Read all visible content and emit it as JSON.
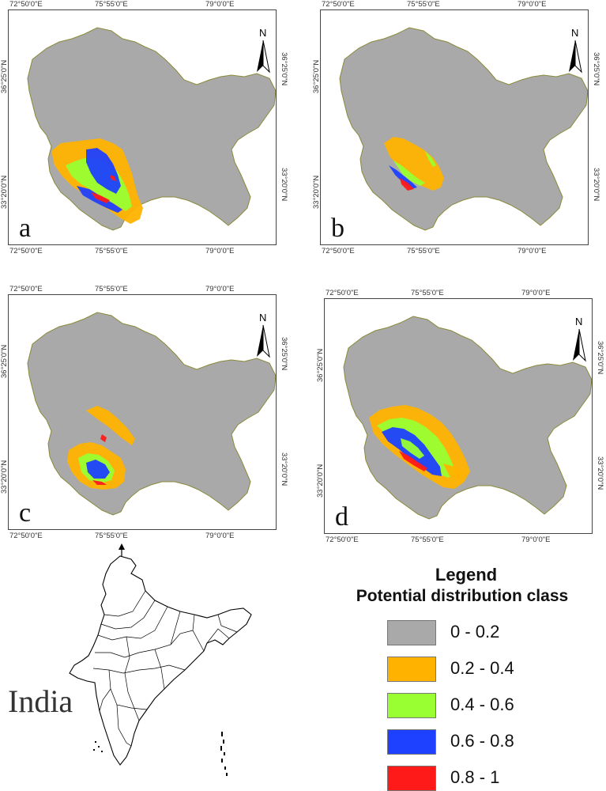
{
  "colors": {
    "background": "#a9a9a9",
    "class_0_0_2": "#a9a9a9",
    "class_0_2_0_4": "#ffb300",
    "class_0_4_0_6": "#99ff33",
    "class_0_6_0_8": "#1e40ff",
    "class_0_8_1": "#ff1a1a",
    "outline": "#8a8a3a"
  },
  "panels": [
    {
      "id": "a",
      "label": "a",
      "top_ticks": [
        "72°50'0\"E",
        "75°55'0\"E",
        "79°0'0\"E"
      ],
      "bottom_ticks": [
        "72°50'0\"E",
        "75°55'0\"E",
        "79°0'0\"E"
      ],
      "left_ticks": [
        "36°25'0\"N",
        "33°20'0\"N"
      ],
      "right_ticks": [
        "36°25'0\"N",
        "33°20'0\"N"
      ],
      "north": "N"
    },
    {
      "id": "b",
      "label": "b",
      "top_ticks": [
        "72°50'0\"E",
        "75°55'0\"E",
        "79°0'0\"E"
      ],
      "bottom_ticks": [
        "72°50'0\"E",
        "75°55'0\"E",
        "79°0'0\"E"
      ],
      "left_ticks": [
        "36°25'0\"N",
        "33°20'0\"N"
      ],
      "right_ticks": [
        "36°25'0\"N",
        "33°20'0\"N"
      ],
      "north": "N"
    },
    {
      "id": "c",
      "label": "c",
      "top_ticks": [
        "72°50'0\"E",
        "75°55'0\"E",
        "79°0'0\"E"
      ],
      "bottom_ticks": [
        "72°50'0\"E",
        "75°55'0\"E",
        "79°0'0\"E"
      ],
      "left_ticks": [
        "36°25'0\"N",
        "33°20'0\"N"
      ],
      "right_ticks": [
        "36°25'0\"N",
        "33°20'0\"N"
      ],
      "north": "N"
    },
    {
      "id": "d",
      "label": "d",
      "top_ticks": [
        "72°50'0\"E",
        "75°55'0\"E",
        "79°0'0\"E"
      ],
      "bottom_ticks": [
        "72°50'0\"E",
        "75°55'0\"E",
        "79°0'0\"E"
      ],
      "left_ticks": [
        "36°25'0\"N",
        "33°20'0\"N"
      ],
      "right_ticks": [
        "36°25'0\"N",
        "33°20'0\"N"
      ],
      "north": "N"
    }
  ],
  "india": {
    "label": "India"
  },
  "legend": {
    "title": "Legend",
    "subtitle": "Potential distribution class",
    "items": [
      {
        "label": "0 - 0.2",
        "color": "#a9a9a9"
      },
      {
        "label": "0.2 - 0.4",
        "color": "#ffb300"
      },
      {
        "label": "0.4 - 0.6",
        "color": "#99ff33"
      },
      {
        "label": "0.6 - 0.8",
        "color": "#1e40ff"
      },
      {
        "label": "0.8 - 1",
        "color": "#ff1a1a"
      }
    ]
  }
}
